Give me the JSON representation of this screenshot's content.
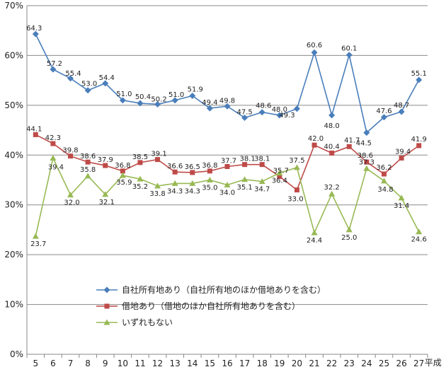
{
  "chart_data": {
    "type": "line",
    "x_suffix": "平成",
    "x": [
      "5",
      "6",
      "7",
      "8",
      "9",
      "10",
      "11",
      "12",
      "13",
      "14",
      "15",
      "16",
      "17",
      "18",
      "19",
      "20",
      "21",
      "22",
      "23",
      "24",
      "25",
      "26",
      "27"
    ],
    "ylim": [
      0,
      70
    ],
    "y_ticks": [
      "0%",
      "10%",
      "20%",
      "30%",
      "40%",
      "50%",
      "60%",
      "70%"
    ],
    "grid": "horizontal",
    "legend_position": "bottom-left",
    "series": [
      {
        "name": "自社所有地あり（自社所有地のほか借地ありを含む）",
        "color": "#4a7ebb",
        "marker": "diamond",
        "values": [
          64.3,
          57.2,
          55.4,
          53.0,
          54.4,
          51.0,
          50.4,
          50.2,
          51.0,
          51.9,
          49.4,
          49.8,
          47.5,
          48.6,
          48.0,
          49.3,
          60.6,
          48.0,
          60.1,
          44.5,
          47.6,
          48.7,
          55.1
        ],
        "labels": [
          "64.3",
          "57.2",
          "55.4",
          "53.0",
          "54.4",
          "51.0",
          "50.4",
          "50.2",
          "51.0",
          "51.9",
          "49.4",
          "49.8",
          "47.5",
          "48.6",
          "48.0",
          "49.3",
          "60.6",
          "48.0",
          "60.1",
          "44.5",
          "47.6",
          "48.7",
          "55.1"
        ]
      },
      {
        "name": "借地あり（借地のほか自社所有地ありを含む）",
        "color": "#be4b48",
        "marker": "square",
        "values": [
          44.1,
          42.3,
          39.8,
          38.6,
          37.9,
          36.8,
          38.5,
          39.1,
          36.6,
          36.5,
          36.8,
          37.7,
          38.1,
          38.1,
          35.7,
          33.0,
          42.0,
          40.4,
          41.7,
          38.6,
          36.2,
          39.4,
          41.9
        ],
        "labels": [
          "44.1",
          "42.3",
          "39.8",
          "38.6",
          "37.9",
          "36.8",
          "38.5",
          "39.1",
          "36.6",
          "36.5",
          "36.8",
          "37.7",
          "38.1",
          "38.1",
          "35.7",
          "33.0",
          "42.0",
          "40.4",
          "41.7",
          "38.6",
          "36.2",
          "39.4",
          "41.9"
        ]
      },
      {
        "name": "いずれもない",
        "color": "#98b954",
        "marker": "triangle",
        "values": [
          23.7,
          39.4,
          32.0,
          35.8,
          32.1,
          35.9,
          35.2,
          33.8,
          34.3,
          34.3,
          35.0,
          34.0,
          35.1,
          34.7,
          36.4,
          37.5,
          24.4,
          32.2,
          25.0,
          37.3,
          34.8,
          31.4,
          24.6
        ],
        "labels": [
          "23.7",
          "39.4",
          "32.0",
          "35.8",
          "32.1",
          "35.9",
          "35.2",
          "33.8",
          "34.3",
          "34.3",
          "35.0",
          "34.0",
          "35.1",
          "34.7",
          "36.4",
          "37.5",
          "24.4",
          "32.2",
          "25.0",
          "37.3",
          "34.8",
          "31.4",
          "24.6"
        ]
      }
    ]
  }
}
